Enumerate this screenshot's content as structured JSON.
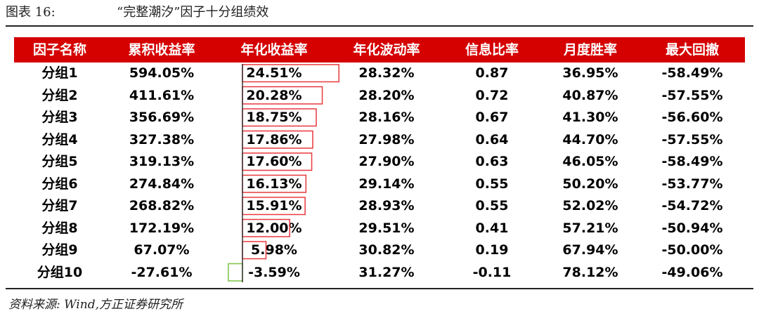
{
  "caption": {
    "label": "图表 16:",
    "title": "“完整潮汐”因子十分组绩效"
  },
  "columns": [
    "因子名称",
    "累积收益率",
    "年化收益率",
    "年化波动率",
    "信息比率",
    "月度胜率",
    "最大回撤"
  ],
  "rows": [
    [
      "分组1",
      "594.05%",
      "24.51%",
      "28.32%",
      "0.87",
      "36.95%",
      "-58.49%"
    ],
    [
      "分组2",
      "411.61%",
      "20.28%",
      "28.20%",
      "0.72",
      "40.87%",
      "-57.55%"
    ],
    [
      "分组3",
      "356.69%",
      "18.75%",
      "28.16%",
      "0.67",
      "41.30%",
      "-56.60%"
    ],
    [
      "分组4",
      "327.38%",
      "17.86%",
      "27.98%",
      "0.64",
      "44.70%",
      "-57.55%"
    ],
    [
      "分组5",
      "319.13%",
      "17.60%",
      "27.90%",
      "0.63",
      "46.05%",
      "-58.49%"
    ],
    [
      "分组6",
      "274.84%",
      "16.13%",
      "29.14%",
      "0.55",
      "50.20%",
      "-53.77%"
    ],
    [
      "分组7",
      "268.82%",
      "15.91%",
      "28.93%",
      "0.55",
      "52.02%",
      "-54.72%"
    ],
    [
      "分组8",
      "172.19%",
      "12.00%",
      "29.51%",
      "0.41",
      "57.21%",
      "-50.94%"
    ],
    [
      "分组9",
      "67.07%",
      "5.98%",
      "30.82%",
      "0.19",
      "67.94%",
      "-50.00%"
    ],
    [
      "分组10",
      "-27.61%",
      "-3.59%",
      "31.27%",
      "-0.11",
      "78.12%",
      "-49.06%"
    ]
  ],
  "databar_values": [
    24.51,
    20.28,
    18.75,
    17.86,
    17.6,
    16.13,
    15.91,
    12.0,
    5.98,
    -3.59
  ],
  "colors": {
    "header_bg": "#d50000",
    "positive_bar": "#e8383d",
    "negative_bar": "#7cc242"
  },
  "source": "资料来源: Wind,方正证券研究所"
}
